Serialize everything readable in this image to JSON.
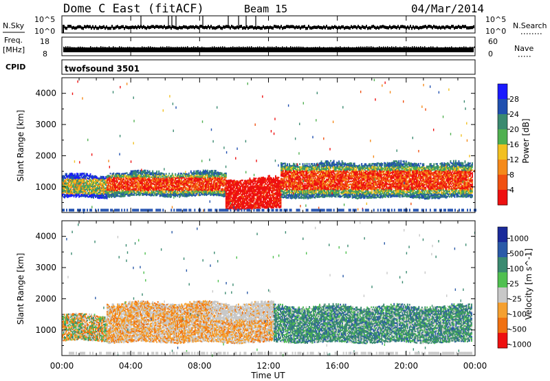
{
  "header": {
    "station": "Dome C East (fitACF)",
    "beam": "Beam 15",
    "date": "04/Mar/2014"
  },
  "top_panels": {
    "nsky": {
      "label": "N.Sky",
      "right_label": "N.Search",
      "left_ticks": [
        "10^5",
        "10^0"
      ],
      "right_ticks": [
        "10^5",
        "10^0"
      ]
    },
    "freq": {
      "label_line1": "Freq.",
      "label_line2": "[MHz]",
      "right_label": "Nave",
      "left_ticks": [
        "18",
        "8"
      ],
      "right_ticks": [
        "60",
        "0"
      ]
    },
    "cpid": {
      "label": "CPID",
      "value": "twofsound 3501"
    }
  },
  "chart_data": [
    {
      "type": "heatmap",
      "name": "power",
      "ylabel": "Slant Range [km]",
      "xlabel": "",
      "x_ticks": [
        "00:00",
        "04:00",
        "08:00",
        "12:00",
        "16:00",
        "20:00",
        "00:00"
      ],
      "x_range_hours": [
        0,
        24
      ],
      "ylim": [
        180,
        4500
      ],
      "y_ticks": [
        1000,
        2000,
        3000,
        4000
      ],
      "y_tick_labels": [
        "1000",
        "2000",
        "3000",
        "4000"
      ],
      "colorbar": {
        "label": "Power [dB]",
        "tick_labels": [
          "4",
          "8",
          "12",
          "16",
          "20",
          "24",
          "28"
        ],
        "colors": [
          "#1a1aff",
          "#2050b0",
          "#3a8a70",
          "#50b050",
          "#f2c020",
          "#f58a1a",
          "#f05010",
          "#ee1010"
        ]
      },
      "bands": [
        {
          "t": [
            0,
            2.6
          ],
          "lo": 650,
          "hi": 1350,
          "value": "mixed"
        },
        {
          "t": [
            2.6,
            9.5
          ],
          "lo": 700,
          "hi": 1450,
          "value": "high"
        },
        {
          "t": [
            9.5,
            12.7
          ],
          "lo": 300,
          "hi": 1250,
          "value": "very-high"
        },
        {
          "t": [
            12.7,
            23.8
          ],
          "lo": 650,
          "hi": 1750,
          "value": "high"
        }
      ]
    },
    {
      "type": "heatmap",
      "name": "velocity",
      "ylabel": "Slant Range [km]",
      "xlabel": "Time UT",
      "x_ticks": [
        "00:00",
        "04:00",
        "08:00",
        "12:00",
        "16:00",
        "20:00",
        "00:00"
      ],
      "x_range_hours": [
        0,
        24
      ],
      "ylim": [
        180,
        4500
      ],
      "y_ticks": [
        1000,
        2000,
        3000,
        4000
      ],
      "y_tick_labels": [
        "1000",
        "2000",
        "3000",
        "4000"
      ],
      "colorbar": {
        "label": "Velocity [m s^-1]",
        "tick_labels": [
          "1000",
          "500",
          "100",
          "25",
          "-25",
          "-100",
          "-500",
          "-1000"
        ],
        "colors": [
          "#1a2a9a",
          "#2a5aa8",
          "#3a8a70",
          "#50c050",
          "#c8c8c8",
          "#f5a030",
          "#f07010",
          "#ee1010"
        ]
      },
      "bands": [
        {
          "t": [
            0,
            2.6
          ],
          "lo": 650,
          "hi": 1450,
          "value": "mixed"
        },
        {
          "t": [
            2.6,
            12.3
          ],
          "lo": 600,
          "hi": 1850,
          "value": "negative"
        },
        {
          "t": [
            12.3,
            23.8
          ],
          "lo": 600,
          "hi": 1750,
          "value": "positive"
        }
      ]
    }
  ]
}
